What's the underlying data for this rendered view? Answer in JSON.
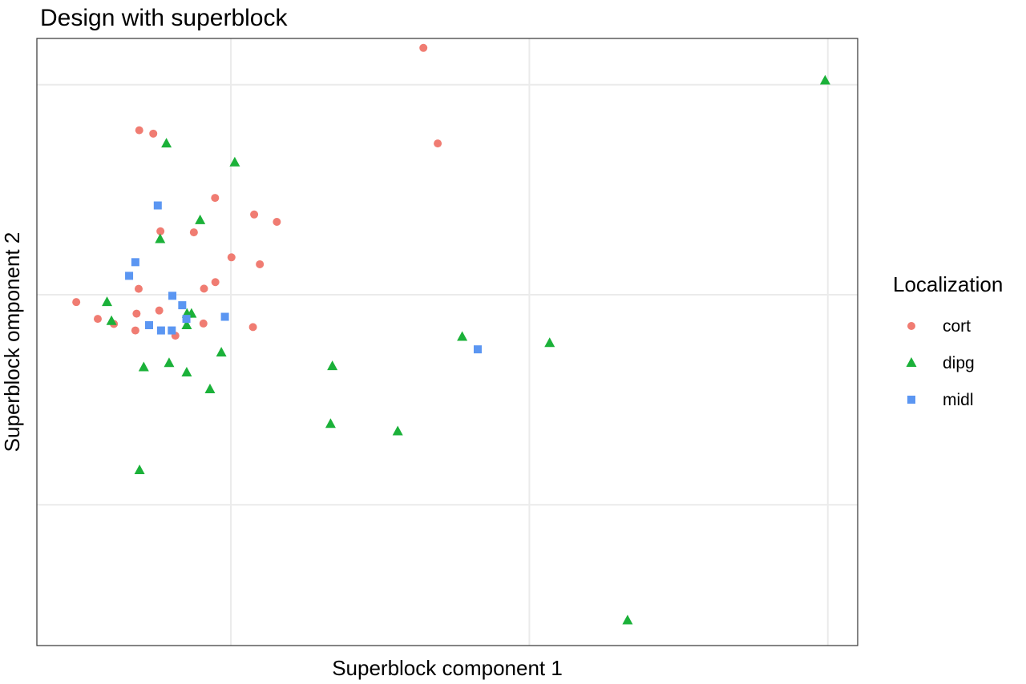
{
  "chart_data": {
    "type": "scatter",
    "title": "Design with superblock",
    "xlabel": "Superblock component 1",
    "ylabel": "Superblock omponent 2",
    "xlim": [
      -0.65,
      2.1
    ],
    "ylim": [
      -1.67,
      1.22
    ],
    "x_grid": [
      0,
      1,
      2
    ],
    "y_grid": [
      -1,
      0,
      1
    ],
    "grid": true,
    "legend": {
      "title": "Localization",
      "position": "right"
    },
    "series": [
      {
        "name": "cort",
        "shape": "circle",
        "color": "#F07C72",
        "points": [
          [
            -0.307,
            0.783
          ],
          [
            -0.26,
            0.767
          ],
          [
            -0.236,
            0.302
          ],
          [
            -0.124,
            0.297
          ],
          [
            -0.053,
            0.461
          ],
          [
            0.078,
            0.382
          ],
          [
            -0.309,
            0.028
          ],
          [
            -0.09,
            0.029
          ],
          [
            0.002,
            0.178
          ],
          [
            0.154,
            0.347
          ],
          [
            0.074,
            -0.154
          ],
          [
            0.097,
            0.145
          ],
          [
            -0.518,
            -0.035
          ],
          [
            -0.446,
            -0.115
          ],
          [
            -0.392,
            -0.139
          ],
          [
            -0.316,
            -0.09
          ],
          [
            -0.32,
            -0.17
          ],
          [
            -0.24,
            -0.075
          ],
          [
            -0.186,
            -0.195
          ],
          [
            -0.092,
            -0.137
          ],
          [
            -0.052,
            0.06
          ],
          [
            0.645,
            1.175
          ],
          [
            0.693,
            0.72
          ]
        ]
      },
      {
        "name": "dipg",
        "shape": "triangle",
        "color": "#1BB139",
        "points": [
          [
            -0.216,
            0.72
          ],
          [
            0.013,
            0.63
          ],
          [
            -0.103,
            0.355
          ],
          [
            -0.237,
            0.265
          ],
          [
            -0.415,
            -0.035
          ],
          [
            -0.4,
            -0.125
          ],
          [
            -0.147,
            -0.09
          ],
          [
            -0.132,
            -0.09
          ],
          [
            -0.148,
            -0.145
          ],
          [
            -0.292,
            -0.345
          ],
          [
            -0.207,
            -0.325
          ],
          [
            -0.148,
            -0.37
          ],
          [
            -0.032,
            -0.275
          ],
          [
            -0.07,
            -0.45
          ],
          [
            -0.306,
            -0.835
          ],
          [
            0.34,
            -0.34
          ],
          [
            0.334,
            -0.615
          ],
          [
            0.559,
            -0.65
          ],
          [
            0.775,
            -0.2
          ],
          [
            1.068,
            -0.23
          ],
          [
            1.329,
            -1.55
          ],
          [
            1.991,
            1.02
          ]
        ]
      },
      {
        "name": "midl",
        "shape": "square",
        "color": "#5B96F2",
        "points": [
          [
            -0.245,
            0.425
          ],
          [
            -0.32,
            0.155
          ],
          [
            -0.341,
            0.09
          ],
          [
            -0.196,
            -0.005
          ],
          [
            -0.163,
            -0.05
          ],
          [
            -0.149,
            -0.115
          ],
          [
            -0.274,
            -0.145
          ],
          [
            -0.234,
            -0.17
          ],
          [
            -0.198,
            -0.17
          ],
          [
            -0.02,
            -0.105
          ],
          [
            0.827,
            -0.26
          ]
        ]
      }
    ]
  }
}
